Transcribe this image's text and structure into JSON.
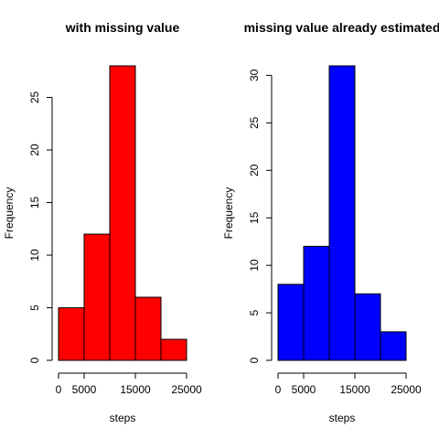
{
  "chart_data": [
    {
      "type": "bar",
      "title": "with missing value",
      "xlabel": "steps",
      "ylabel": "Frequency",
      "bin_edges": [
        0,
        5000,
        10000,
        15000,
        20000,
        25000
      ],
      "values": [
        5,
        12,
        28,
        6,
        2
      ],
      "xlim": [
        0,
        25000
      ],
      "ylim": [
        0,
        28
      ],
      "x_ticks": [
        0,
        5000,
        15000,
        25000
      ],
      "y_ticks": [
        0,
        5,
        10,
        15,
        20,
        25
      ],
      "color": "#ff0000",
      "grid": false
    },
    {
      "type": "bar",
      "title": "missing value already estimated",
      "xlabel": "steps",
      "ylabel": "Frequency",
      "bin_edges": [
        0,
        5000,
        10000,
        15000,
        20000,
        25000
      ],
      "values": [
        8,
        12,
        31,
        7,
        3
      ],
      "xlim": [
        0,
        25000
      ],
      "ylim": [
        0,
        31
      ],
      "x_ticks": [
        0,
        5000,
        15000,
        25000
      ],
      "y_ticks": [
        0,
        5,
        10,
        15,
        20,
        25,
        30
      ],
      "color": "#0000ff",
      "grid": false
    }
  ]
}
